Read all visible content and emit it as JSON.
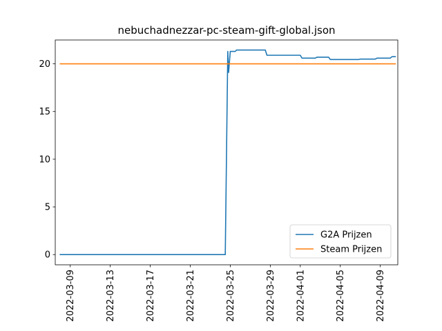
{
  "chart_data": {
    "type": "line",
    "title": "nebuchadnezzar-pc-steam-gift-global.json",
    "xlabel": "",
    "ylabel": "",
    "x_type": "date",
    "xlim": [
      "2022-03-07T12:00",
      "2022-04-10T18:00"
    ],
    "ylim": [
      -1.07,
      22.5
    ],
    "x_ticks": [
      "2022-03-09",
      "2022-03-13",
      "2022-03-17",
      "2022-03-21",
      "2022-03-25",
      "2022-03-29",
      "2022-04-01",
      "2022-04-05",
      "2022-04-09"
    ],
    "y_ticks": [
      0,
      5,
      10,
      15,
      20
    ],
    "grid": false,
    "legend_position": "lower-right",
    "series": [
      {
        "name": "G2A Prijzen",
        "color": "#1f77b4",
        "points": [
          [
            "2022-03-08T00:00",
            0
          ],
          [
            "2022-03-24T12:00",
            0
          ],
          [
            "2022-03-24T18:00",
            21.3
          ],
          [
            "2022-03-24T20:00",
            19.1
          ],
          [
            "2022-03-25T00:00",
            21.3
          ],
          [
            "2022-03-25T12:00",
            21.3
          ],
          [
            "2022-03-25T15:00",
            21.45
          ],
          [
            "2022-03-28T12:00",
            21.45
          ],
          [
            "2022-03-28T16:00",
            20.9
          ],
          [
            "2022-04-01T00:00",
            20.9
          ],
          [
            "2022-04-01T04:00",
            20.6
          ],
          [
            "2022-04-02T12:00",
            20.6
          ],
          [
            "2022-04-02T16:00",
            20.7
          ],
          [
            "2022-04-03T20:00",
            20.7
          ],
          [
            "2022-04-04T00:00",
            20.45
          ],
          [
            "2022-04-06T20:00",
            20.45
          ],
          [
            "2022-04-07T00:00",
            20.5
          ],
          [
            "2022-04-08T12:00",
            20.5
          ],
          [
            "2022-04-08T16:00",
            20.6
          ],
          [
            "2022-04-10T00:00",
            20.6
          ],
          [
            "2022-04-10T04:00",
            20.75
          ],
          [
            "2022-04-10T12:00",
            20.75
          ]
        ]
      },
      {
        "name": "Steam Prijzen",
        "color": "#ff7f0e",
        "points": [
          [
            "2022-03-08T00:00",
            20
          ],
          [
            "2022-04-10T12:00",
            20
          ]
        ]
      }
    ]
  }
}
